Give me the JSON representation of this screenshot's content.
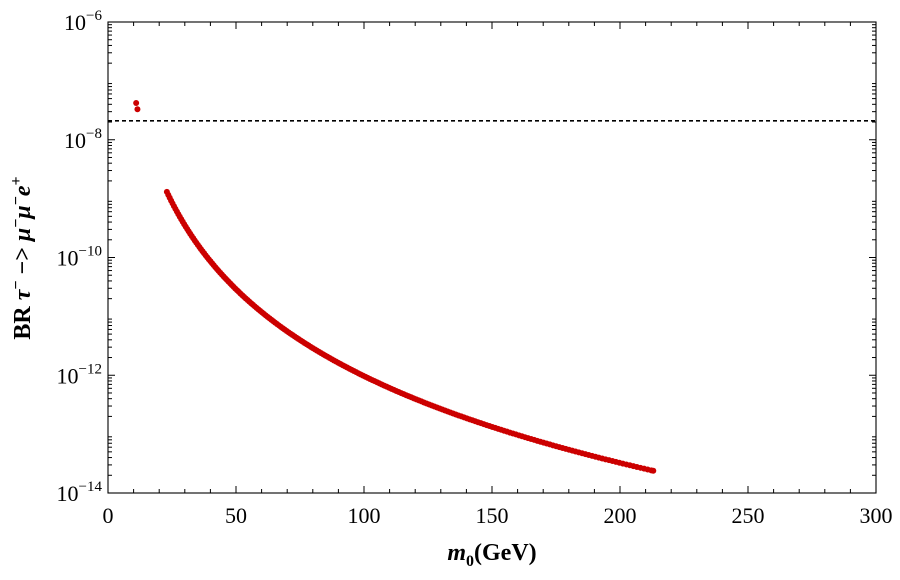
{
  "chart_data": {
    "type": "scatter",
    "title": "",
    "xlabel": {
      "main": "m",
      "sub": "0",
      "rest": "(GeV)"
    },
    "ylabel": {
      "pre": "BR ",
      "tau": "τ",
      "tau_sup": "−",
      "arrow": " −> ",
      "mu1": "μ",
      "mu1_sup": "−",
      "mu2": "μ",
      "mu2_sup": "−",
      "e": "e",
      "e_sup": "+"
    },
    "xlim": [
      0,
      300
    ],
    "ylim_log10": [
      -14,
      -6
    ],
    "x_ticks": [
      {
        "value": 0,
        "label": "0"
      },
      {
        "value": 50,
        "label": "50"
      },
      {
        "value": 100,
        "label": "100"
      },
      {
        "value": 150,
        "label": "150"
      },
      {
        "value": 200,
        "label": "200"
      },
      {
        "value": 250,
        "label": "250"
      },
      {
        "value": 300,
        "label": "300"
      }
    ],
    "y_ticks": [
      {
        "value": -6,
        "base": "10",
        "exp": "−6"
      },
      {
        "value": -8,
        "base": "10",
        "exp": "−8"
      },
      {
        "value": -10,
        "base": "10",
        "exp": "−10"
      },
      {
        "value": -12,
        "base": "10",
        "exp": "−12"
      },
      {
        "value": -14,
        "base": "10",
        "exp": "−14"
      }
    ],
    "reference_line": {
      "y": 2.1e-08,
      "style": "dashed"
    },
    "series": [
      {
        "name": "BR",
        "color": "#cc0000",
        "outliers": [
          [
            11,
            4.2e-08
          ],
          [
            11.5,
            3.3e-08
          ]
        ],
        "curve": {
          "x_start": 23,
          "x_end": 213,
          "y_start": 1.3e-09,
          "exponent": -4.9
        }
      }
    ]
  }
}
